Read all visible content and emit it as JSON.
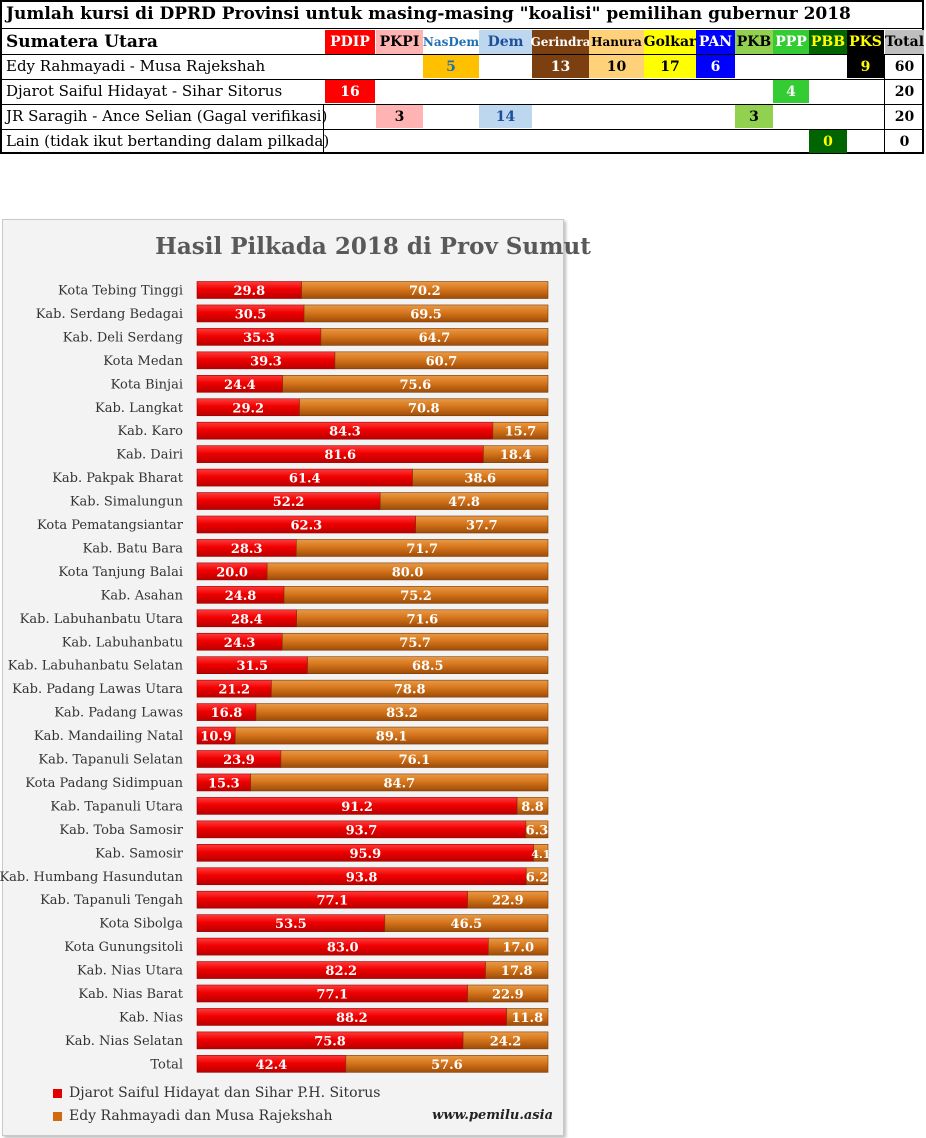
{
  "coalition_table": {
    "title": "Jumlah kursi di DPRD Provinsi untuk masing-masing \"koalisi\" pemilihan gubernur 2018",
    "province": "Sumatera Utara",
    "parties": [
      {
        "name": "PDIP",
        "bg": "#ff0000",
        "fg": "#ffffff"
      },
      {
        "name": "PKPI",
        "bg": "#ffb3b3",
        "fg": "#000000"
      },
      {
        "name": "NasDem",
        "bg": "#ffffff",
        "fg": "#1f6fb2"
      },
      {
        "name": "Dem",
        "bg": "#bdd7ee",
        "fg": "#1f4f9a"
      },
      {
        "name": "Gerindra",
        "bg": "#7b3f10",
        "fg": "#ffffff"
      },
      {
        "name": "Hanura",
        "bg": "#ffd27a",
        "fg": "#000000"
      },
      {
        "name": "Golkar",
        "bg": "#ffff00",
        "fg": "#000000"
      },
      {
        "name": "PAN",
        "bg": "#0000ff",
        "fg": "#ffffff"
      },
      {
        "name": "PKB",
        "bg": "#92d050",
        "fg": "#000000"
      },
      {
        "name": "PPP",
        "bg": "#33cc33",
        "fg": "#ffffff"
      },
      {
        "name": "PBB",
        "bg": "#006400",
        "fg": "#ffff00"
      },
      {
        "name": "PKS",
        "bg": "#000000",
        "fg": "#ffff00"
      }
    ],
    "total_header": "Total",
    "rows": [
      {
        "label": "Edy Rahmayadi - Musa Rajekshah",
        "seats": {
          "NasDem": "5",
          "Gerindra": "13",
          "Hanura": "10",
          "Golkar": "17",
          "PAN": "6",
          "PKS": "9"
        },
        "total": "60"
      },
      {
        "label": "Djarot Saiful Hidayat - Sihar Sitorus",
        "seats": {
          "PDIP": "16",
          "PPP": "4"
        },
        "total": "20"
      },
      {
        "label": "JR Saragih - Ance Selian (Gagal verifikasi)",
        "seats": {
          "PKPI": "3",
          "Dem": "14",
          "PKB": "3"
        },
        "total": "20"
      },
      {
        "label": "Lain (tidak ikut bertanding dalam pilkada)",
        "seats": {
          "PBB": "0"
        },
        "total": "0"
      }
    ],
    "cell_colors": {
      "NasDem": "#ffc000",
      "Gerindra": "#7b3f10",
      "Hanura": "#ffd27a",
      "Golkar": "#ffff00",
      "PAN": "#0000ff",
      "PKS": "#000000",
      "PDIP": "#ff0000",
      "PPP": "#33cc33",
      "PKPI": "#ffb3b3",
      "Dem": "#bdd7ee",
      "PKB": "#92d050",
      "PBB": "#006400"
    },
    "cell_text_colors": {
      "NasDem": "#1f6fb2",
      "Gerindra": "#ffffff",
      "Hanura": "#000000",
      "Golkar": "#000000",
      "PAN": "#ffffff",
      "PKS": "#ffff00",
      "PDIP": "#ffffff",
      "PPP": "#ffffff",
      "PKPI": "#000000",
      "Dem": "#1f4f9a",
      "PKB": "#000000",
      "PBB": "#ffff00"
    }
  },
  "chart_data": {
    "type": "bar",
    "orientation": "horizontal",
    "stacked": true,
    "title": "Hasil Pilkada 2018 di Prov Sumut",
    "xlim": [
      0,
      100
    ],
    "grid": false,
    "legend_position": "bottom",
    "categories": [
      "Kota Tebing Tinggi",
      "Kab. Serdang Bedagai",
      "Kab. Deli Serdang",
      "Kota Medan",
      "Kota Binjai",
      "Kab. Langkat",
      "Kab. Karo",
      "Kab. Dairi",
      "Kab. Pakpak Bharat",
      "Kab. Simalungun",
      "Kota Pematangsiantar",
      "Kab. Batu Bara",
      "Kota Tanjung Balai",
      "Kab. Asahan",
      "Kab. Labuhanbatu Utara",
      "Kab. Labuhanbatu",
      "Kab. Labuhanbatu Selatan",
      "Kab. Padang Lawas Utara",
      "Kab. Padang Lawas",
      "Kab. Mandailing Natal",
      "Kab. Tapanuli Selatan",
      "Kota Padang Sidimpuan",
      "Kab. Tapanuli Utara",
      "Kab. Toba Samosir",
      "Kab. Samosir",
      "Kab. Humbang Hasundutan",
      "Kab. Tapanuli Tengah",
      "Kota Sibolga",
      "Kota Gunungsitoli",
      "Kab. Nias Utara",
      "Kab. Nias Barat",
      "Kab. Nias",
      "Kab. Nias Selatan",
      "Total"
    ],
    "series": [
      {
        "name": "Djarot Saiful Hidayat dan Sihar P.H. Sitorus",
        "color": "#ff0000",
        "values": [
          "29.8",
          "30.5",
          "35.3",
          "39.3",
          "24.4",
          "29.2",
          "84.3",
          "81.6",
          "61.4",
          "52.2",
          "62.3",
          "28.3",
          "20.0",
          "24.8",
          "28.4",
          "24.3",
          "31.5",
          "21.2",
          "16.8",
          "10.9",
          "23.9",
          "15.3",
          "91.2",
          "93.7",
          "95.9",
          "93.8",
          "77.1",
          "53.5",
          "83.0",
          "82.2",
          "77.1",
          "88.2",
          "75.8",
          "42.4"
        ]
      },
      {
        "name": "Edy Rahmayadi dan Musa Rajekshah",
        "color": "#e07b1a",
        "values": [
          "70.2",
          "69.5",
          "64.7",
          "60.7",
          "75.6",
          "70.8",
          "15.7",
          "18.4",
          "38.6",
          "47.8",
          "37.7",
          "71.7",
          "80.0",
          "75.2",
          "71.6",
          "75.7",
          "68.5",
          "78.8",
          "83.2",
          "89.1",
          "76.1",
          "84.7",
          "8.8",
          "6.3",
          "4.1",
          "6.2",
          "22.9",
          "46.5",
          "17.0",
          "17.8",
          "22.9",
          "11.8",
          "24.2",
          "57.6"
        ]
      }
    ],
    "watermark": "www.pemilu.asia"
  }
}
